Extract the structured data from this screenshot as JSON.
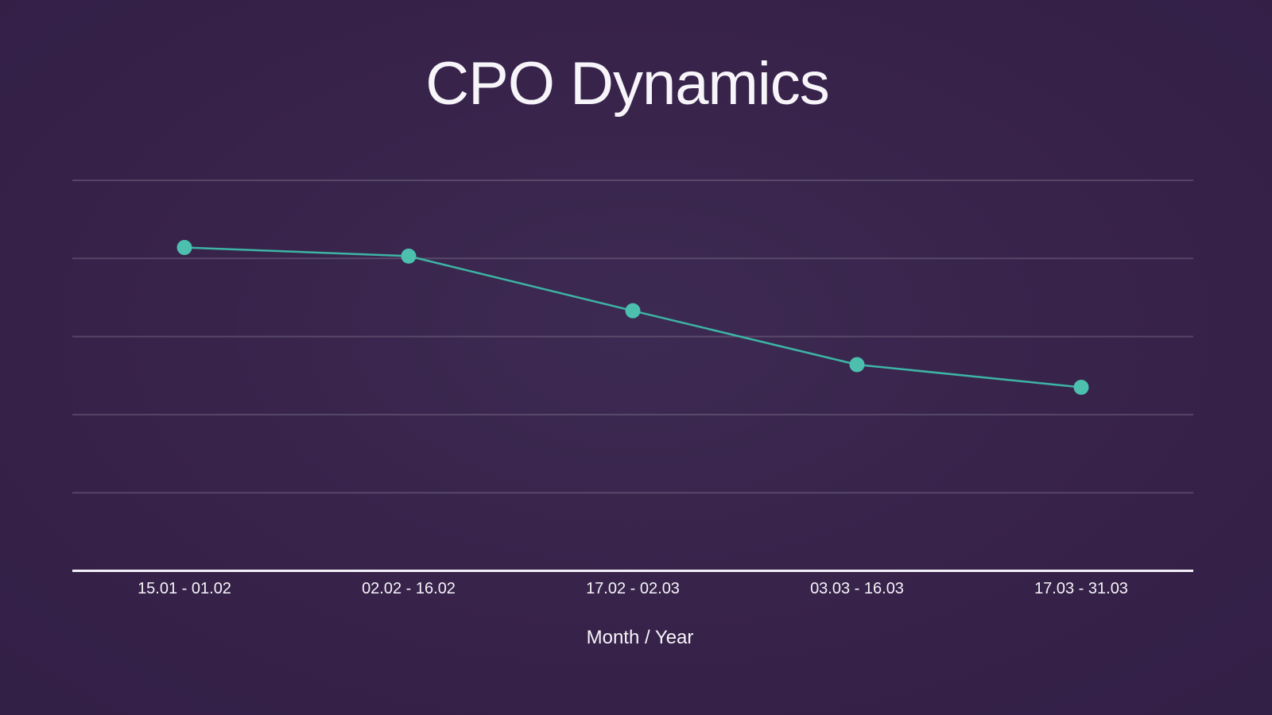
{
  "colors": {
    "background": "#372249",
    "background_center": "#3D2A52",
    "background_edge": "#332047",
    "text": "#F7F4FA",
    "line": "#3DB5A5",
    "point": "#4CBFAE",
    "gridline": "rgba(255,255,255,0.16)",
    "axis_line": "#F3F0F7"
  },
  "chart_data": {
    "type": "line",
    "title": "CPO Dynamics",
    "xlabel": "Month / Year",
    "ylabel": "",
    "categories": [
      "15.01 - 01.02",
      "02.02 - 16.02",
      "17.02 - 02.03",
      "03.03 - 16.03",
      "17.03 - 31.03"
    ],
    "values": [
      4.14,
      4.03,
      3.33,
      2.64,
      2.35
    ],
    "ylim": [
      0,
      5
    ],
    "y_axis_tick_labels_visible": false,
    "values_note": "y-axis has no visible tick labels; values estimated in gridline units (baseline axis = 0, one unit per gridline)",
    "grid": "horizontal",
    "gridline_count": 5,
    "legend": "none",
    "marker": "filled-circle"
  }
}
